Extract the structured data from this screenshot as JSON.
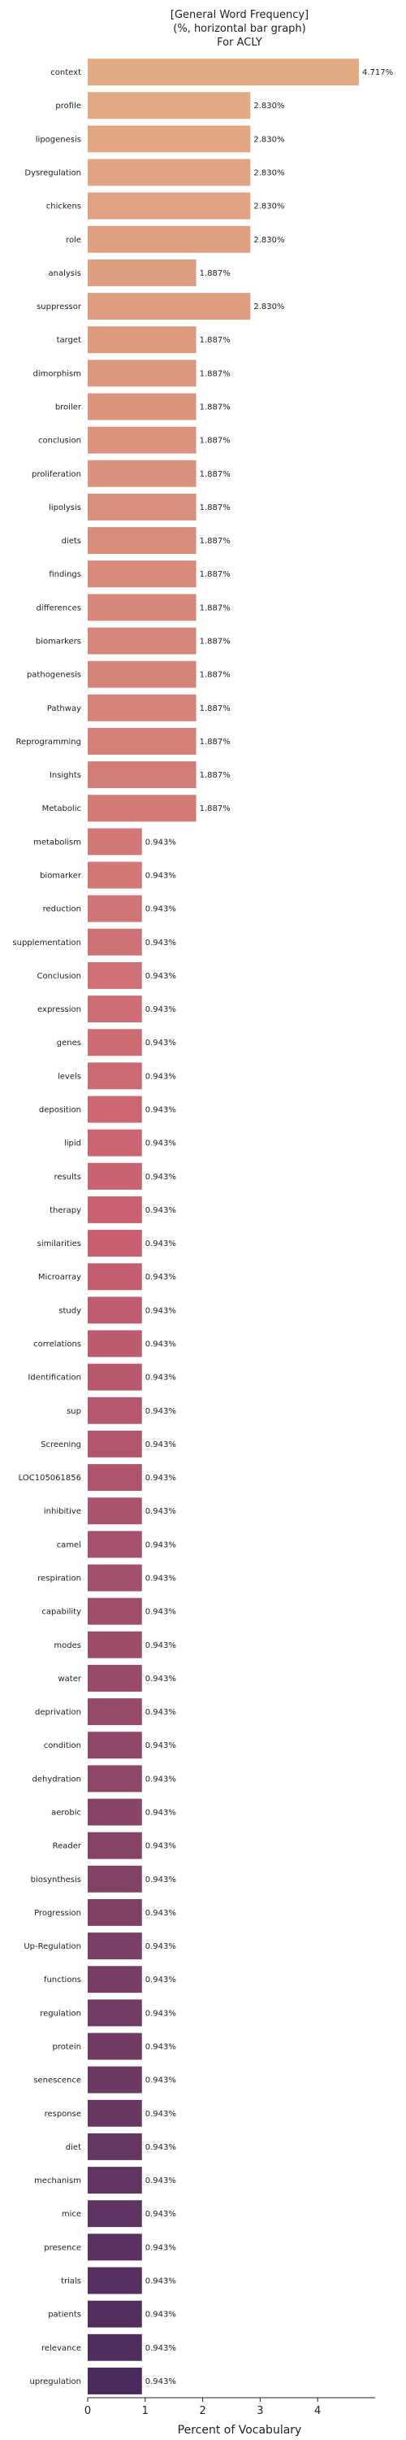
{
  "chart_data": {
    "type": "bar",
    "orientation": "horizontal",
    "title_lines": [
      "[General Word Frequency]",
      "(%, horizontal bar graph)",
      "For ACLY"
    ],
    "xlabel": "Percent of Vocabulary",
    "ylabel": "",
    "xlim": [
      0,
      5.0
    ],
    "xticks": [
      0,
      1,
      2,
      3,
      4
    ],
    "grid": false,
    "legend": "none",
    "categories": [
      "context",
      "profile",
      "lipogenesis",
      "Dysregulation",
      "chickens",
      "role",
      "analysis",
      "suppressor",
      "target",
      "dimorphism",
      "broiler",
      "conclusion",
      "proliferation",
      "lipolysis",
      "diets",
      "findings",
      "differences",
      "biomarkers",
      "pathogenesis",
      "Pathway",
      "Reprogramming",
      "Insights",
      "Metabolic",
      "metabolism",
      "biomarker",
      "reduction",
      "supplementation",
      "Conclusion",
      "expression",
      "genes",
      "levels",
      "deposition",
      "lipid",
      "results",
      "therapy",
      "similarities",
      "Microarray",
      "study",
      "correlations",
      "Identification",
      "sup",
      "Screening",
      "LOC105061856",
      "inhibitive",
      "camel",
      "respiration",
      "capability",
      "modes",
      "water",
      "deprivation",
      "condition",
      "dehydration",
      "aerobic",
      "Reader",
      "biosynthesis",
      "Progression",
      "Up-Regulation",
      "functions",
      "regulation",
      "protein",
      "senescence",
      "response",
      "diet",
      "mechanism",
      "mice",
      "presence",
      "trials",
      "patients",
      "relevance",
      "upregulation"
    ],
    "values": [
      4.717,
      2.83,
      2.83,
      2.83,
      2.83,
      2.83,
      1.887,
      2.83,
      1.887,
      1.887,
      1.887,
      1.887,
      1.887,
      1.887,
      1.887,
      1.887,
      1.887,
      1.887,
      1.887,
      1.887,
      1.887,
      1.887,
      1.887,
      0.943,
      0.943,
      0.943,
      0.943,
      0.943,
      0.943,
      0.943,
      0.943,
      0.943,
      0.943,
      0.943,
      0.943,
      0.943,
      0.943,
      0.943,
      0.943,
      0.943,
      0.943,
      0.943,
      0.943,
      0.943,
      0.943,
      0.943,
      0.943,
      0.943,
      0.943,
      0.943,
      0.943,
      0.943,
      0.943,
      0.943,
      0.943,
      0.943,
      0.943,
      0.943,
      0.943,
      0.943,
      0.943,
      0.943,
      0.943,
      0.943,
      0.943,
      0.943,
      0.943,
      0.943,
      0.943,
      0.943
    ],
    "value_labels": [
      "4.717%",
      "2.830%",
      "2.830%",
      "2.830%",
      "2.830%",
      "2.830%",
      "1.887%",
      "2.830%",
      "1.887%",
      "1.887%",
      "1.887%",
      "1.887%",
      "1.887%",
      "1.887%",
      "1.887%",
      "1.887%",
      "1.887%",
      "1.887%",
      "1.887%",
      "1.887%",
      "1.887%",
      "1.887%",
      "1.887%",
      "0.943%",
      "0.943%",
      "0.943%",
      "0.943%",
      "0.943%",
      "0.943%",
      "0.943%",
      "0.943%",
      "0.943%",
      "0.943%",
      "0.943%",
      "0.943%",
      "0.943%",
      "0.943%",
      "0.943%",
      "0.943%",
      "0.943%",
      "0.943%",
      "0.943%",
      "0.943%",
      "0.943%",
      "0.943%",
      "0.943%",
      "0.943%",
      "0.943%",
      "0.943%",
      "0.943%",
      "0.943%",
      "0.943%",
      "0.943%",
      "0.943%",
      "0.943%",
      "0.943%",
      "0.943%",
      "0.943%",
      "0.943%",
      "0.943%",
      "0.943%",
      "0.943%",
      "0.943%",
      "0.943%",
      "0.943%",
      "0.943%",
      "0.943%",
      "0.943%",
      "0.943%",
      "0.943%"
    ],
    "palette": {
      "start": "#e3ab84",
      "mid": "#c96070",
      "end": "#4b2b5e"
    }
  }
}
